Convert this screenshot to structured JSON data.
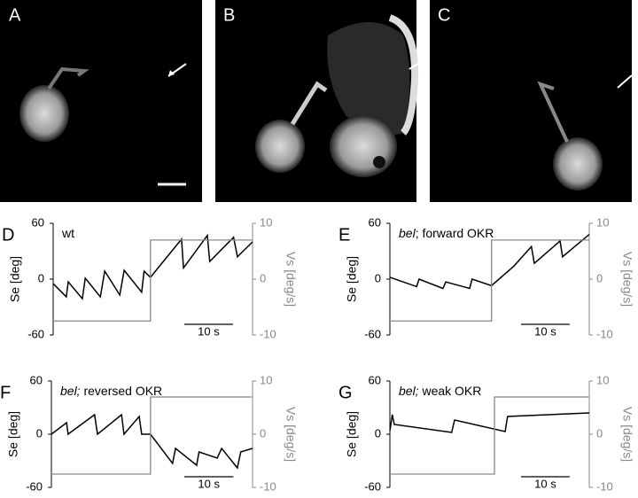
{
  "image_panels": [
    {
      "label": "A"
    },
    {
      "label": "B"
    },
    {
      "label": "C"
    }
  ],
  "chart_data": [
    {
      "type": "line",
      "panel": "D",
      "annotation": [
        {
          "text": "wt",
          "italic": false
        }
      ],
      "ylabel": "Se [deg]",
      "y2label": "Vs [deg/s]",
      "xlim": [
        0,
        41
      ],
      "ylim": [
        -60,
        60
      ],
      "yticks": [
        -60,
        0,
        60
      ],
      "y2lim": [
        -10,
        10
      ],
      "y2ticks": [
        -10,
        0,
        10
      ],
      "scalebar": {
        "length": 10,
        "label": "10 s"
      },
      "series": [
        {
          "color": "#000000",
          "x": [
            0,
            2.7,
            3.1,
            6.0,
            6.6,
            9.7,
            10.6,
            13.7,
            14.6,
            18.2,
            18.7,
            20.0,
            26.4,
            26.8,
            31.7,
            32.2,
            37.1,
            37.9,
            41
          ],
          "values": [
            -4.8,
            -19,
            -2.9,
            -21,
            1,
            -19,
            8.6,
            -17,
            9.5,
            -14,
            8.6,
            1.9,
            43,
            12,
            47,
            19,
            45,
            24,
            40
          ]
        },
        {
          "color": "#888888",
          "axis": "y2",
          "x": [
            0,
            20,
            20,
            41
          ],
          "values": [
            -7.5,
            -7.5,
            7,
            7
          ]
        }
      ]
    },
    {
      "type": "line",
      "panel": "E",
      "annotation": [
        {
          "text": "bel",
          "italic": true
        },
        {
          "text": "; forward OKR",
          "italic": false
        }
      ],
      "ylabel": "Se [deg]",
      "y2label": "Vs [deg/s]",
      "xlim": [
        0,
        41
      ],
      "ylim": [
        -60,
        60
      ],
      "yticks": [
        -60,
        0,
        60
      ],
      "y2lim": [
        -10,
        10
      ],
      "y2ticks": [
        -10,
        0,
        10
      ],
      "scalebar": {
        "length": 10,
        "label": "10 s"
      },
      "series": [
        {
          "color": "#000000",
          "x": [
            0,
            5.5,
            6.0,
            10.9,
            11.5,
            16.4,
            16.9,
            20.9,
            25.5,
            29.1,
            29.7,
            35.0,
            35.5,
            41
          ],
          "values": [
            2,
            -8,
            0,
            -10,
            -3,
            -10,
            0,
            -7,
            14,
            35,
            17,
            41,
            24,
            48
          ]
        },
        {
          "color": "#888888",
          "axis": "y2",
          "x": [
            0,
            20.9,
            20.9,
            41
          ],
          "values": [
            -7.5,
            -7.5,
            7,
            7
          ]
        }
      ]
    },
    {
      "type": "line",
      "panel": "F",
      "annotation": [
        {
          "text": "bel;",
          "italic": true
        },
        {
          "text": " reversed OKR",
          "italic": false
        }
      ],
      "ylabel": "Se [deg]",
      "y2label": "Vs [deg/s]",
      "xlim": [
        0,
        41
      ],
      "ylim": [
        -60,
        60
      ],
      "yticks": [
        -60,
        0,
        60
      ],
      "y2lim": [
        -10,
        10
      ],
      "y2ticks": [
        -10,
        0,
        10
      ],
      "scalebar": {
        "length": 10,
        "label": "10 s"
      },
      "series": [
        {
          "color": "#000000",
          "x": [
            0,
            3.1,
            3.4,
            8.8,
            9.4,
            14.3,
            14.8,
            17.9,
            18.4,
            20.2,
            24.7,
            25.3,
            29.6,
            30.1,
            33.8,
            34.7,
            37.9,
            38.6,
            41
          ],
          "values": [
            0,
            13,
            0,
            22,
            0,
            22,
            0,
            20,
            0,
            0,
            -33,
            -16,
            -35,
            -20,
            -27,
            -16,
            -38,
            -20,
            -16
          ]
        },
        {
          "color": "#888888",
          "axis": "y2",
          "x": [
            0,
            20.2,
            20.2,
            41
          ],
          "values": [
            -7.5,
            -7.5,
            7,
            7
          ]
        }
      ]
    },
    {
      "type": "line",
      "panel": "G",
      "annotation": [
        {
          "text": "bel;",
          "italic": true
        },
        {
          "text": " weak OKR",
          "italic": false
        }
      ],
      "ylabel": "Se [deg]",
      "y2label": "Vs [deg/s]",
      "xlim": [
        0,
        41
      ],
      "ylim": [
        -60,
        60
      ],
      "yticks": [
        -60,
        0,
        60
      ],
      "y2lim": [
        -10,
        10
      ],
      "y2ticks": [
        -10,
        0,
        10
      ],
      "scalebar": {
        "length": 10,
        "label": "10 s"
      },
      "series": [
        {
          "color": "#000000",
          "x": [
            0,
            0.5,
            0.9,
            12.7,
            13.3,
            23.7,
            24.2,
            41
          ],
          "values": [
            4,
            22,
            11,
            2,
            16,
            3,
            20,
            24
          ]
        },
        {
          "color": "#888888",
          "axis": "y2",
          "x": [
            0,
            21.5,
            21.5,
            41
          ],
          "values": [
            -7.5,
            -7.5,
            7,
            7
          ]
        }
      ]
    }
  ]
}
